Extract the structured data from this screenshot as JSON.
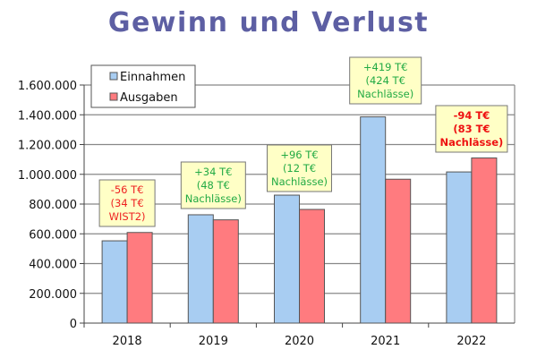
{
  "chart_data": {
    "type": "bar",
    "title": "Gewinn und Verlust",
    "categories": [
      "2018",
      "2019",
      "2020",
      "2021",
      "2022"
    ],
    "series": [
      {
        "name": "Einnahmen",
        "color": "#a8cdf2",
        "values": [
          553000,
          728000,
          860000,
          1386000,
          1016000
        ]
      },
      {
        "name": "Ausgaben",
        "color": "#ff7b7f",
        "values": [
          609000,
          694000,
          764000,
          967000,
          1110000
        ]
      }
    ],
    "ylim": [
      0,
      1600000
    ],
    "yticks": [
      "0",
      "200.000",
      "400.000",
      "600.000",
      "800.000",
      "1.000.000",
      "1.200.000",
      "1.400.000",
      "1.600.000"
    ],
    "grid": true,
    "legend": "top-left",
    "annotations": [
      {
        "category": "2018",
        "lines": [
          "-56 T€",
          "(34 T€",
          "WIST2)"
        ],
        "color": "#ee2222",
        "bold": false
      },
      {
        "category": "2019",
        "lines": [
          "+34 T€",
          "(48 T€",
          "Nachlässe)"
        ],
        "color": "#22aa44",
        "bold": false
      },
      {
        "category": "2020",
        "lines": [
          "+96 T€",
          "(12 T€",
          "Nachlässe)"
        ],
        "color": "#22aa44",
        "bold": false
      },
      {
        "category": "2021",
        "lines": [
          "+419 T€",
          "(424 T€",
          "Nachlässe)"
        ],
        "color": "#22aa44",
        "bold": false
      },
      {
        "category": "2022",
        "lines": [
          "-94 T€",
          "(83 T€",
          "Nachlässe)"
        ],
        "color": "#ee1111",
        "bold": true
      }
    ]
  }
}
